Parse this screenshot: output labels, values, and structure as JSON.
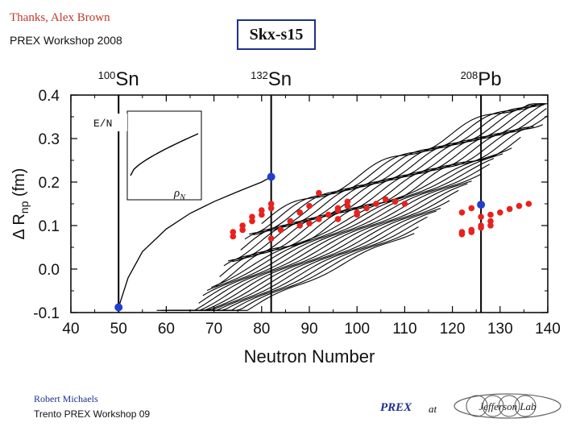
{
  "slide": {
    "credit": "Thanks, Alex Brown",
    "workshop": "PREX Workshop 2008",
    "model_label": "Skx-s15",
    "footer_name": "Robert Michaels",
    "footer_workshop": "Trento PREX Workshop 09",
    "prex_label": "PREX",
    "at_label": "at",
    "logo_text": "Jefferson Lab"
  },
  "colors": {
    "red_points": "#e8221e",
    "blue_points": "#1f3fd1",
    "box_border": "#1f2f8f",
    "curves": "#000000"
  },
  "chart_data": {
    "type": "line",
    "title": "",
    "xlabel": "Neutron Number",
    "ylabel_main": "Δ R",
    "ylabel_sub": "np",
    "ylabel_unit": "(fm)",
    "xlim": [
      40,
      140
    ],
    "ylim": [
      -0.1,
      0.4
    ],
    "xticks": [
      40,
      50,
      60,
      70,
      80,
      90,
      100,
      110,
      120,
      130,
      140
    ],
    "yticks": [
      -0.1,
      0.0,
      0.1,
      0.2,
      0.3,
      0.4
    ],
    "ytick_labels": [
      "-0.1",
      "0.0",
      "0.1",
      "0.2",
      "0.3",
      "0.4"
    ],
    "vertical_lines": [
      {
        "x": 50,
        "label_mass": "100",
        "label_el": "Sn"
      },
      {
        "x": 82,
        "label_mass": "132",
        "label_el": "Sn"
      },
      {
        "x": 126,
        "label_mass": "208",
        "label_el": "Pb"
      }
    ],
    "inset": {
      "x_label": "ρ",
      "x_sub": "N",
      "y_label": "E/N"
    },
    "sn_chain": [
      [
        50,
        -0.088
      ],
      [
        52,
        -0.02
      ],
      [
        55,
        0.04
      ],
      [
        60,
        0.092
      ],
      [
        65,
        0.128
      ],
      [
        70,
        0.155
      ],
      [
        75,
        0.178
      ],
      [
        80,
        0.2
      ],
      [
        82,
        0.212
      ]
    ],
    "band": {
      "x_start": 58,
      "x_end": 140,
      "n_curves": 26,
      "offset_min": -0.085,
      "offset_max": 0.1
    },
    "red_points": [
      [
        74,
        0.085
      ],
      [
        74,
        0.075
      ],
      [
        76,
        0.09
      ],
      [
        76,
        0.1
      ],
      [
        78,
        0.11
      ],
      [
        78,
        0.12
      ],
      [
        80,
        0.125
      ],
      [
        80,
        0.135
      ],
      [
        82,
        0.14
      ],
      [
        82,
        0.15
      ],
      [
        82,
        0.07
      ],
      [
        84,
        0.09
      ],
      [
        86,
        0.11
      ],
      [
        88,
        0.13
      ],
      [
        90,
        0.145
      ],
      [
        92,
        0.175
      ],
      [
        88,
        0.1
      ],
      [
        90,
        0.105
      ],
      [
        92,
        0.115
      ],
      [
        94,
        0.125
      ],
      [
        96,
        0.135
      ],
      [
        98,
        0.145
      ],
      [
        96,
        0.14
      ],
      [
        98,
        0.155
      ],
      [
        100,
        0.13
      ],
      [
        102,
        0.14
      ],
      [
        104,
        0.15
      ],
      [
        106,
        0.16
      ],
      [
        108,
        0.155
      ],
      [
        110,
        0.15
      ],
      [
        96,
        0.115
      ],
      [
        100,
        0.125
      ],
      [
        122,
        0.08
      ],
      [
        122,
        0.085
      ],
      [
        124,
        0.085
      ],
      [
        124,
        0.09
      ],
      [
        126,
        0.095
      ],
      [
        126,
        0.1
      ],
      [
        128,
        0.1
      ],
      [
        128,
        0.11
      ],
      [
        126,
        0.12
      ],
      [
        128,
        0.125
      ],
      [
        130,
        0.13
      ],
      [
        132,
        0.138
      ],
      [
        134,
        0.145
      ],
      [
        136,
        0.15
      ],
      [
        122,
        0.13
      ],
      [
        124,
        0.14
      ]
    ],
    "blue_points": [
      [
        50,
        -0.088
      ],
      [
        82,
        0.212
      ],
      [
        126,
        0.148
      ]
    ]
  }
}
